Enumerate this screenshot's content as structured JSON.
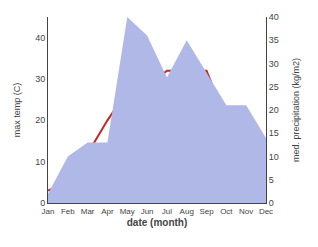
{
  "chart_data": {
    "type": "line",
    "categories": [
      "Jan",
      "Feb",
      "Mar",
      "Apr",
      "May",
      "Jun",
      "Jul",
      "Aug",
      "Sep",
      "Oct",
      "Nov",
      "Dec"
    ],
    "series": [
      {
        "type": "area",
        "color": "#b0b8e8",
        "axis": "y2",
        "values": [
          2,
          10,
          13,
          13,
          40,
          36,
          27,
          35,
          28,
          21,
          21,
          14
        ]
      },
      {
        "type": "line",
        "color": "#cc2222",
        "axis": "y",
        "values": [
          3,
          5,
          12,
          20,
          27,
          28,
          32,
          32,
          32,
          20,
          13,
          11
        ]
      }
    ],
    "xlabel": "date (month)",
    "ylabel": "max temp (C)",
    "y2label": "med. precipitation (kg/m2)",
    "ylim": [
      0,
      45
    ],
    "yticks": [
      0,
      10,
      20,
      30,
      40
    ],
    "y2lim": [
      0,
      40
    ],
    "y2ticks": [
      0,
      5,
      10,
      15,
      20,
      25,
      30,
      35,
      40
    ],
    "grid": false
  }
}
